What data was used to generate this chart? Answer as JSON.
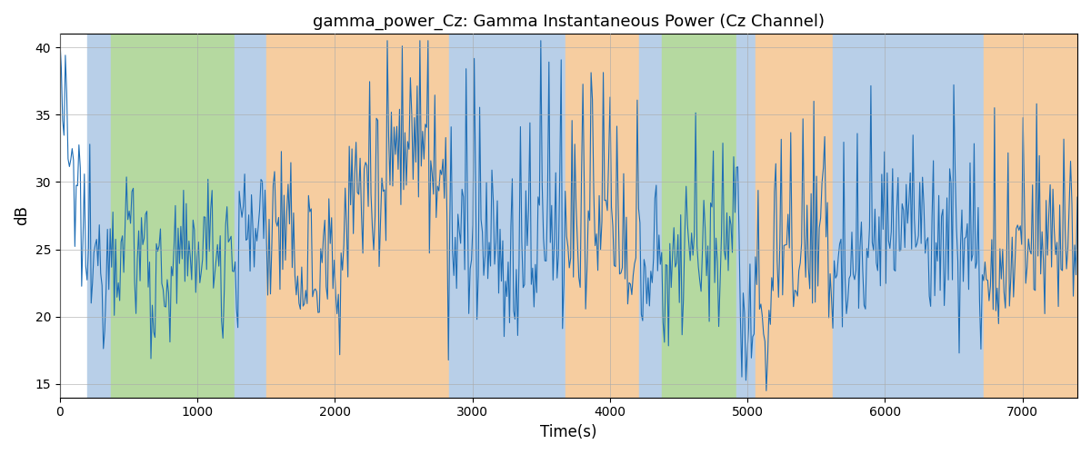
{
  "title": "gamma_power_Cz: Gamma Instantaneous Power (Cz Channel)",
  "xlabel": "Time(s)",
  "ylabel": "dB",
  "xlim": [
    0,
    7400
  ],
  "ylim": [
    14,
    41
  ],
  "yticks": [
    15,
    20,
    25,
    30,
    35,
    40
  ],
  "line_color": "#1f6eb5",
  "line_width": 0.8,
  "bg_bands": [
    {
      "xmin": 0,
      "xmax": 200,
      "color": "#ffffff"
    },
    {
      "xmin": 200,
      "xmax": 370,
      "color": "#b8cfe8"
    },
    {
      "xmin": 370,
      "xmax": 1270,
      "color": "#b5d9a0"
    },
    {
      "xmin": 1270,
      "xmax": 1500,
      "color": "#b8cfe8"
    },
    {
      "xmin": 1500,
      "xmax": 2830,
      "color": "#f6cda0"
    },
    {
      "xmin": 2830,
      "xmax": 3680,
      "color": "#b8cfe8"
    },
    {
      "xmin": 3680,
      "xmax": 4210,
      "color": "#f6cda0"
    },
    {
      "xmin": 4210,
      "xmax": 4380,
      "color": "#b8cfe8"
    },
    {
      "xmin": 4380,
      "xmax": 4920,
      "color": "#b5d9a0"
    },
    {
      "xmin": 4920,
      "xmax": 5060,
      "color": "#b8cfe8"
    },
    {
      "xmin": 5060,
      "xmax": 5620,
      "color": "#f6cda0"
    },
    {
      "xmin": 5620,
      "xmax": 6720,
      "color": "#b8cfe8"
    },
    {
      "xmin": 6720,
      "xmax": 7400,
      "color": "#f6cda0"
    }
  ],
  "seed": 12345,
  "n_points": 750,
  "title_fontsize": 13,
  "figsize": [
    12,
    5
  ],
  "dpi": 100
}
